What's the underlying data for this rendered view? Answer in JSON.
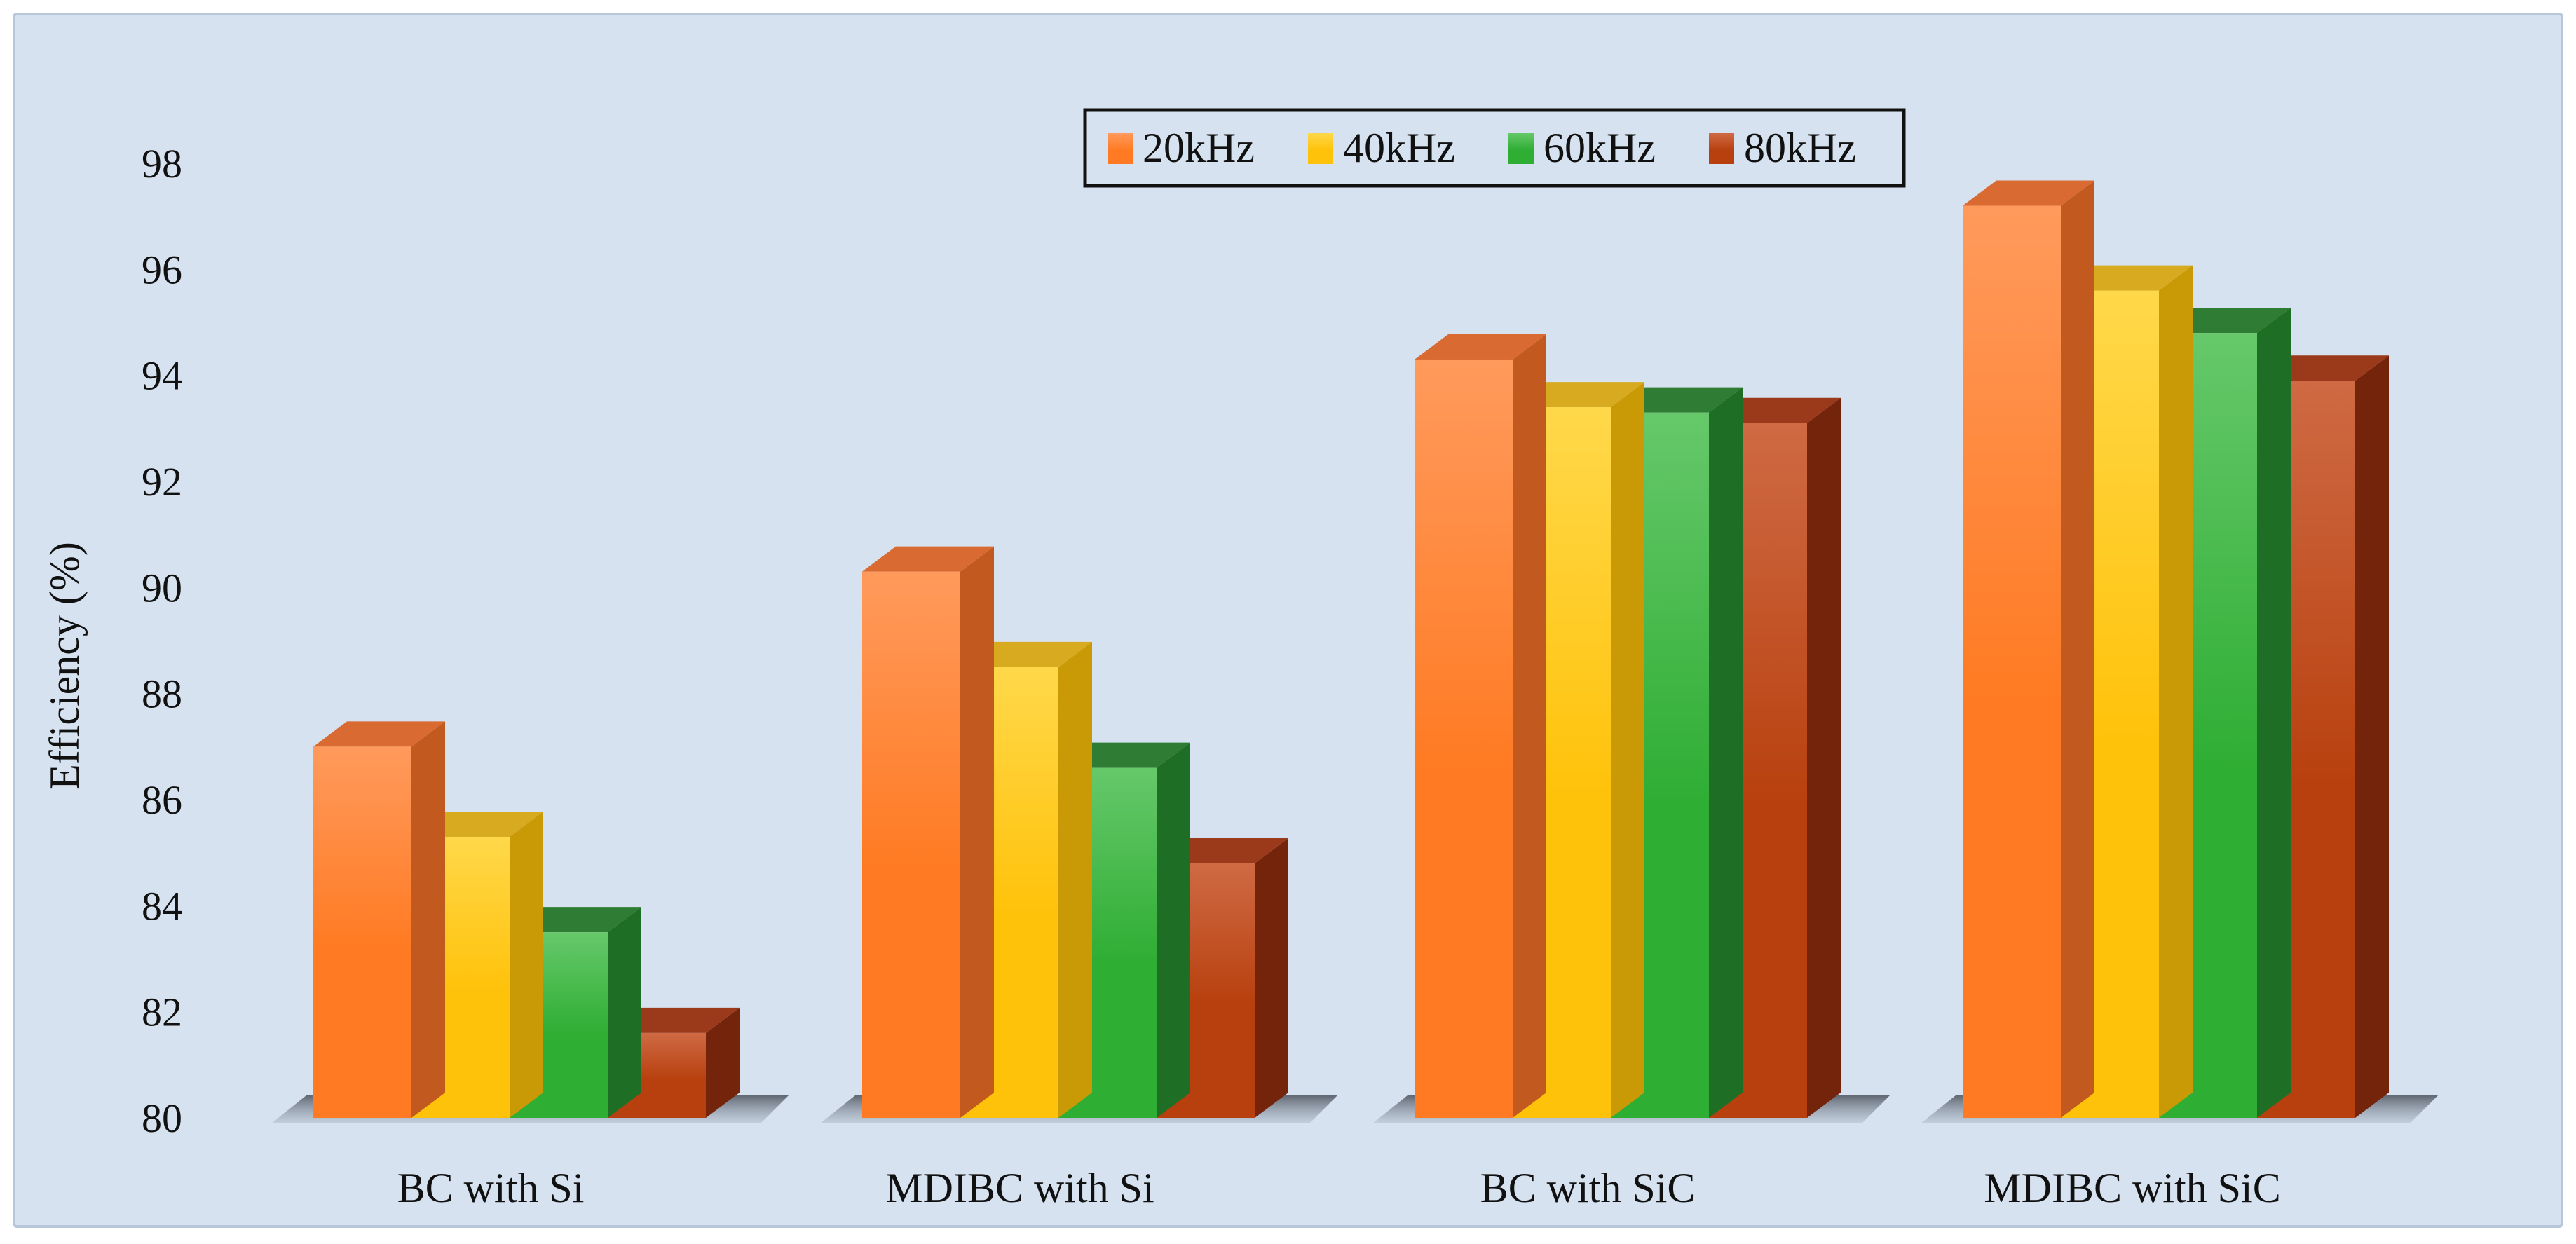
{
  "chart_data": {
    "type": "bar",
    "ylabel": "Efficiency (%)",
    "ylim": [
      80,
      98
    ],
    "yticks": [
      80,
      82,
      84,
      86,
      88,
      90,
      92,
      94,
      96,
      98
    ],
    "categories": [
      "BC  with Si",
      "MDIBC with Si",
      "BC  with SiC",
      "MDIBC with SiC"
    ],
    "series": [
      {
        "name": "20kHz",
        "values": [
          87.0,
          90.3,
          94.3,
          97.2
        ]
      },
      {
        "name": "40kHz",
        "values": [
          85.3,
          88.5,
          93.4,
          95.6
        ]
      },
      {
        "name": "60kHz",
        "values": [
          83.5,
          86.6,
          93.3,
          94.8
        ]
      },
      {
        "name": "80kHz",
        "values": [
          81.6,
          84.8,
          93.1,
          93.9
        ]
      }
    ],
    "legend_position": "top",
    "grid": false,
    "style": "3d-column",
    "colors": {
      "background": "#d6e2f0",
      "border": "#b7c6d8",
      "series": [
        {
          "top": "#ff9a5c",
          "front": "#ff7a22",
          "side": "#c25a20",
          "lid": "#d86a32"
        },
        {
          "top": "#ffd84a",
          "front": "#ffc20a",
          "side": "#c99a06",
          "lid": "#d7aa20"
        },
        {
          "top": "#66c86a",
          "front": "#2fae34",
          "side": "#1f6e25",
          "lid": "#2f7d34"
        },
        {
          "top": "#cf6a44",
          "front": "#b8400e",
          "side": "#74240a",
          "lid": "#9a3a1a"
        }
      ]
    }
  }
}
